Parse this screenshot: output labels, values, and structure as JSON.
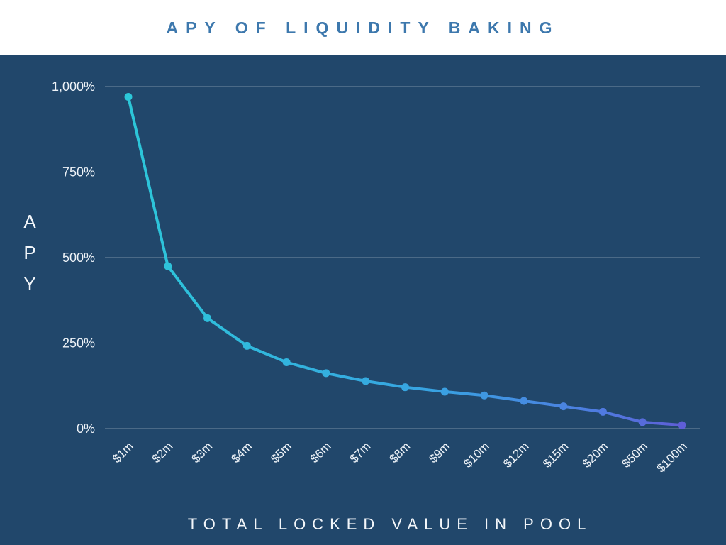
{
  "header": {
    "title": "APY OF LIQUIDITY BAKING"
  },
  "colors": {
    "background": "#21476b",
    "header_background": "#ffffff",
    "title_text": "#3d78ad",
    "axis_text": "#eef3f8",
    "grid_line": "rgba(255,255,255,0.38)",
    "line_gradient": [
      {
        "offset": 0,
        "color": "#2cc7d9"
      },
      {
        "offset": 0.55,
        "color": "#38a3e2"
      },
      {
        "offset": 0.85,
        "color": "#4f7be0"
      },
      {
        "offset": 1,
        "color": "#5f5ed6"
      }
    ]
  },
  "chart_data": {
    "type": "line",
    "title": "APY OF LIQUIDITY BAKING",
    "xlabel": "TOTAL LOCKED VALUE IN POOL",
    "ylabel": "APY",
    "categories": [
      "$1m",
      "$2m",
      "$3m",
      "$4m",
      "$5m",
      "$6m",
      "$7m",
      "$8m",
      "$9m",
      "$10m",
      "$12m",
      "$15m",
      "$20m",
      "$50m",
      "$100m"
    ],
    "values": [
      970,
      475,
      323,
      242,
      194,
      162,
      139,
      121,
      108,
      97,
      81,
      65,
      49,
      19,
      10
    ],
    "ylim": [
      0,
      1000
    ],
    "ytick_values": [
      0,
      250,
      500,
      750,
      1000
    ],
    "yticks": [
      "0%",
      "250%",
      "500%",
      "750%",
      "1,000%"
    ],
    "grid": true,
    "legend": "none"
  }
}
